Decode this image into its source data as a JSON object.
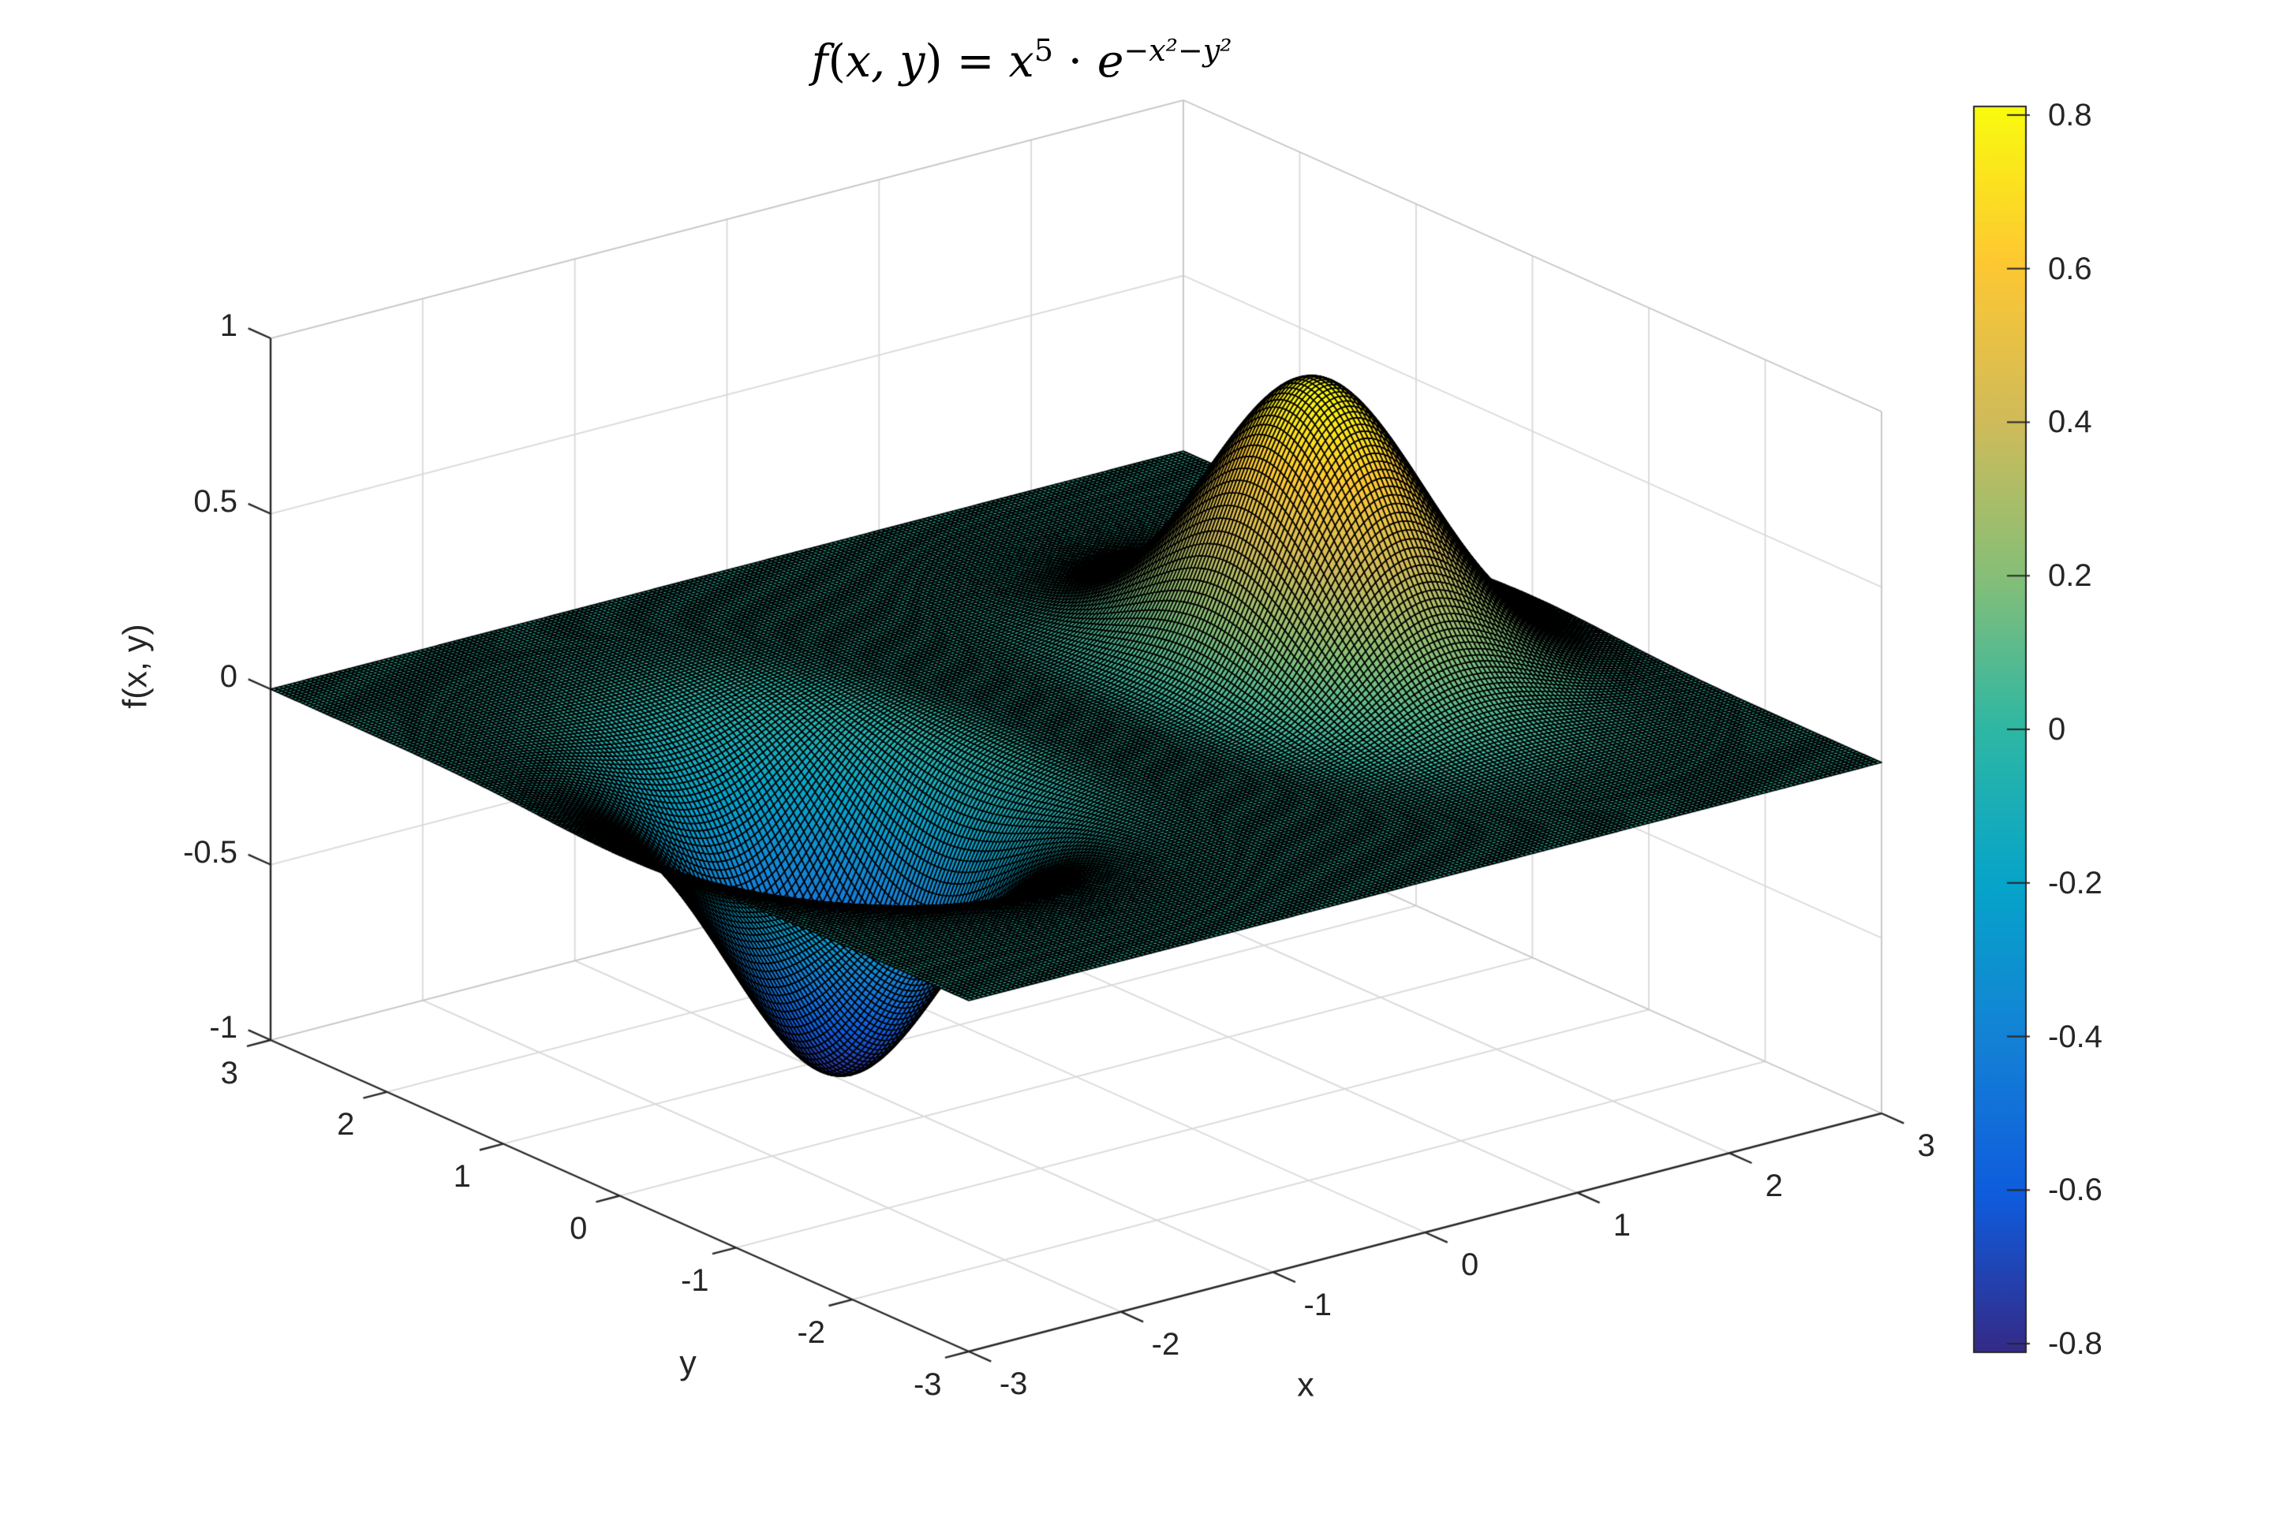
{
  "title": {
    "plain": "f(x,y) = x^5 · e^(−x²−y²)",
    "segments": [
      {
        "t": "f",
        "italic": true
      },
      {
        "t": "(",
        "italic": false
      },
      {
        "t": "x, y",
        "italic": true
      },
      {
        "t": ") = ",
        "italic": false
      },
      {
        "t": "x",
        "italic": true
      },
      {
        "t": "5",
        "italic": false,
        "sup": true
      },
      {
        "t": " ⋅ ",
        "italic": false
      },
      {
        "t": "e",
        "italic": true
      },
      {
        "t": "−x²−y²",
        "italic": true,
        "sup": true
      }
    ]
  },
  "axes": {
    "xlabel": "x",
    "ylabel": "y",
    "zlabel": "f(x, y)",
    "x_ticks": {
      "values": [
        -3,
        -2,
        -1,
        0,
        1,
        2,
        3
      ],
      "labels": [
        "-3",
        "-2",
        "-1",
        "0",
        "1",
        "2",
        "3"
      ]
    },
    "y_ticks": {
      "values": [
        3,
        2,
        1,
        0,
        -1,
        -2,
        -3
      ],
      "labels": [
        "3",
        "2",
        "1",
        "0",
        "-1",
        "-2",
        "-3"
      ]
    },
    "z_ticks": {
      "values": [
        -1,
        -0.5,
        0,
        0.5,
        1
      ],
      "labels": [
        "-1",
        "-0.5",
        "0",
        "0.5",
        "1"
      ]
    }
  },
  "colorbar": {
    "tick_values": [
      0.8,
      0.6,
      0.4,
      0.2,
      0,
      -0.2,
      -0.4,
      -0.6,
      -0.8
    ],
    "tick_labels": [
      "0.8",
      "0.6",
      "0.4",
      "0.2",
      "0",
      "-0.2",
      "-0.4",
      "-0.6",
      "-0.8"
    ],
    "clim": [
      -0.8112,
      0.8112
    ]
  },
  "colors": {
    "background": "#ffffff",
    "text": "#262626",
    "axis_line": "#262626",
    "grid_line": "#d9d9d9",
    "box_edge": "#c4c4c4",
    "mesh_edge": "#000000"
  },
  "chart_data": {
    "type": "surface",
    "title": "f(x,y) = x^5 · e^(−x²−y²)",
    "formula_display": "z = x^5 · exp(−x² − y²)",
    "formula_js": "Math.pow(x,5)*Math.exp(-x*x-y*y)",
    "x_range": [
      -3,
      3
    ],
    "y_range": [
      -3,
      3
    ],
    "z_range": [
      -1,
      1
    ],
    "grid_step": 0.03,
    "xlabel": "x",
    "ylabel": "y",
    "zlabel": "f(x, y)",
    "x_ticks": [
      -3,
      -2,
      -1,
      0,
      1,
      2,
      3
    ],
    "y_ticks": [
      -3,
      -2,
      -1,
      0,
      1,
      2,
      3
    ],
    "z_ticks": [
      -1,
      -0.5,
      0,
      0.5,
      1
    ],
    "surface_extrema": {
      "max_z": 0.811,
      "max_at": [
        1.581,
        0
      ],
      "min_z": -0.811,
      "min_at": [
        -1.581,
        0
      ]
    },
    "view": {
      "azimuth": -37.5,
      "elevation": 30,
      "projection": "orthographic"
    },
    "colormap": {
      "name": "parula",
      "stops": [
        "#352a87",
        "#0f5cdd",
        "#1481d6",
        "#06a4ca",
        "#2eb7a4",
        "#87bf77",
        "#d1bb59",
        "#fec832",
        "#f9fb0e"
      ]
    },
    "colorbar_ticks": [
      -0.8,
      -0.6,
      -0.4,
      -0.2,
      0,
      0.2,
      0.4,
      0.6,
      0.8
    ],
    "clim": [
      -0.8112,
      0.8112
    ],
    "grid": true,
    "legend": null
  }
}
